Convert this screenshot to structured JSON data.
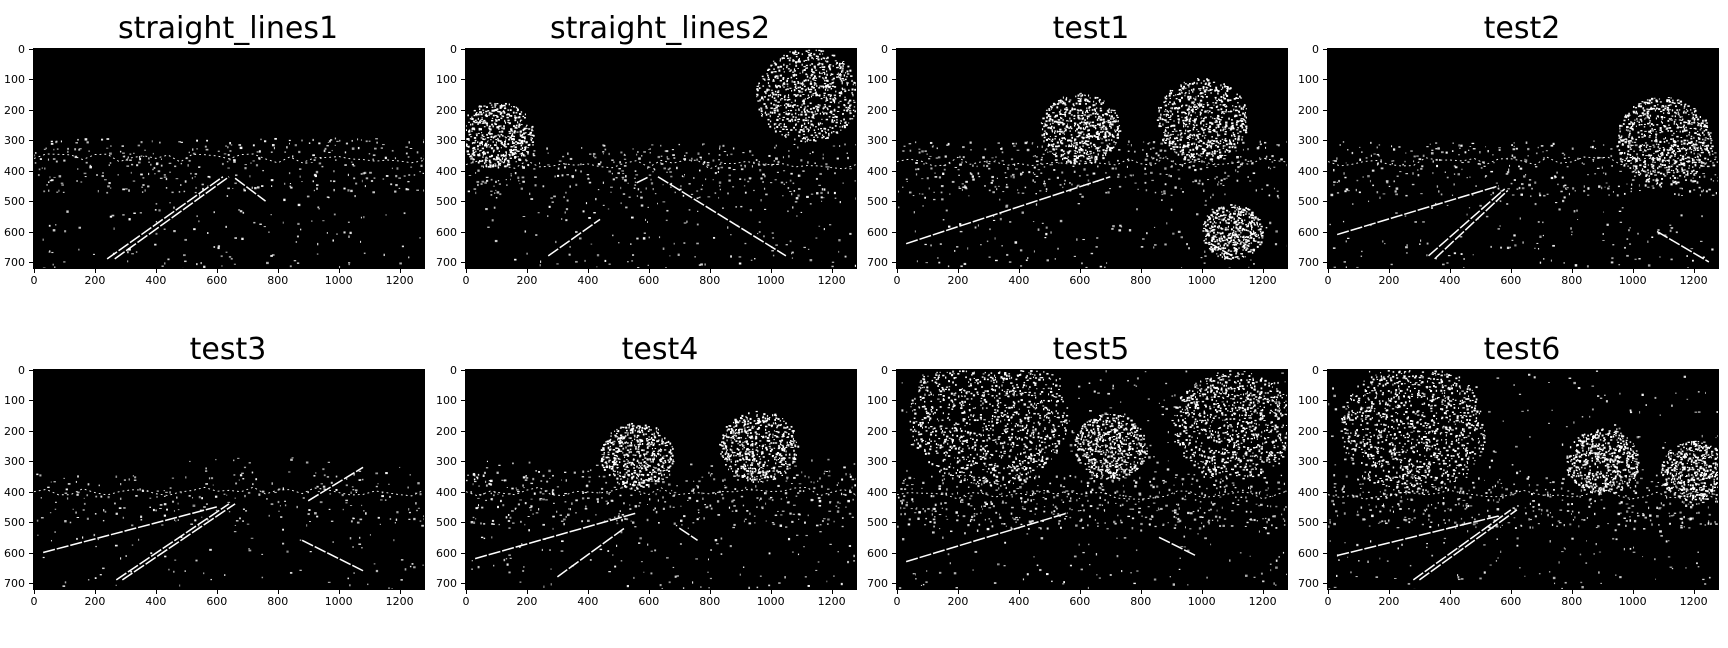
{
  "figure": {
    "background": "#ffffff",
    "image_background": "#000000",
    "edge_color": "#ffffff",
    "panels": [
      {
        "title": "straight_lines1",
        "scene": {
          "lanes": [
            {
              "x1": 240,
              "y1": 690,
              "x2": 620,
              "y2": 420
            },
            {
              "x1": 265,
              "y1": 690,
              "x2": 640,
              "y2": 420
            },
            {
              "x1": 660,
              "y1": 425,
              "x2": 760,
              "y2": 500
            }
          ],
          "horizon": 400,
          "trees": [],
          "noise_top": 290,
          "density": 0.5,
          "seed": 11
        }
      },
      {
        "title": "straight_lines2",
        "scene": {
          "lanes": [
            {
              "x1": 270,
              "y1": 680,
              "x2": 440,
              "y2": 560
            },
            {
              "x1": 630,
              "y1": 420,
              "x2": 1050,
              "y2": 680
            },
            {
              "x1": 560,
              "y1": 440,
              "x2": 600,
              "y2": 420
            }
          ],
          "horizon": 420,
          "trees": [
            {
              "cx": 1120,
              "cy": 150,
              "r": 170
            },
            {
              "cx": 100,
              "cy": 280,
              "r": 120
            }
          ],
          "noise_top": 330,
          "density": 0.55,
          "seed": 23
        }
      },
      {
        "title": "test1",
        "scene": {
          "lanes": [
            {
              "x1": 30,
              "y1": 640,
              "x2": 700,
              "y2": 420
            },
            {
              "x1": 1030,
              "y1": 640,
              "x2": 1100,
              "y2": 680
            }
          ],
          "horizon": 410,
          "trees": [
            {
              "cx": 600,
              "cy": 260,
              "r": 130
            },
            {
              "cx": 1000,
              "cy": 230,
              "r": 150
            },
            {
              "cx": 1100,
              "cy": 600,
              "r": 100
            }
          ],
          "noise_top": 300,
          "density": 0.6,
          "seed": 37
        }
      },
      {
        "title": "test2",
        "scene": {
          "lanes": [
            {
              "x1": 30,
              "y1": 610,
              "x2": 560,
              "y2": 450
            },
            {
              "x1": 330,
              "y1": 680,
              "x2": 580,
              "y2": 460
            },
            {
              "x1": 350,
              "y1": 690,
              "x2": 590,
              "y2": 465
            },
            {
              "x1": 1080,
              "y1": 600,
              "x2": 1250,
              "y2": 700
            }
          ],
          "horizon": 410,
          "trees": [
            {
              "cx": 1100,
              "cy": 300,
              "r": 160
            }
          ],
          "noise_top": 300,
          "density": 0.55,
          "seed": 41
        }
      },
      {
        "title": "test3",
        "scene": {
          "lanes": [
            {
              "x1": 270,
              "y1": 690,
              "x2": 640,
              "y2": 440
            },
            {
              "x1": 290,
              "y1": 690,
              "x2": 660,
              "y2": 440
            },
            {
              "x1": 30,
              "y1": 600,
              "x2": 600,
              "y2": 450
            },
            {
              "x1": 880,
              "y1": 560,
              "x2": 1080,
              "y2": 660
            },
            {
              "x1": 900,
              "y1": 430,
              "x2": 1080,
              "y2": 320
            }
          ],
          "horizon": 440,
          "trees": [],
          "noise_top": 280,
          "density": 0.35,
          "seed": 53
        }
      },
      {
        "title": "test4",
        "scene": {
          "lanes": [
            {
              "x1": 300,
              "y1": 680,
              "x2": 520,
              "y2": 520
            },
            {
              "x1": 30,
              "y1": 620,
              "x2": 560,
              "y2": 470
            },
            {
              "x1": 700,
              "y1": 520,
              "x2": 760,
              "y2": 560
            }
          ],
          "horizon": 440,
          "trees": [
            {
              "cx": 560,
              "cy": 280,
              "r": 120
            },
            {
              "cx": 960,
              "cy": 250,
              "r": 130
            }
          ],
          "noise_top": 290,
          "density": 0.6,
          "seed": 67
        }
      },
      {
        "title": "test5",
        "scene": {
          "lanes": [
            {
              "x1": 30,
              "y1": 630,
              "x2": 560,
              "y2": 470
            },
            {
              "x1": 860,
              "y1": 550,
              "x2": 980,
              "y2": 610
            }
          ],
          "horizon": 450,
          "trees": [
            {
              "cx": 300,
              "cy": 150,
              "r": 260
            },
            {
              "cx": 1100,
              "cy": 180,
              "r": 200
            },
            {
              "cx": 700,
              "cy": 250,
              "r": 120
            }
          ],
          "noise_top": 0,
          "density": 0.85,
          "seed": 79
        }
      },
      {
        "title": "test6",
        "scene": {
          "lanes": [
            {
              "x1": 280,
              "y1": 690,
              "x2": 600,
              "y2": 460
            },
            {
              "x1": 300,
              "y1": 690,
              "x2": 620,
              "y2": 460
            },
            {
              "x1": 30,
              "y1": 610,
              "x2": 560,
              "y2": 480
            }
          ],
          "horizon": 450,
          "trees": [
            {
              "cx": 280,
              "cy": 190,
              "r": 240
            },
            {
              "cx": 900,
              "cy": 300,
              "r": 120
            },
            {
              "cx": 1200,
              "cy": 330,
              "r": 110
            }
          ],
          "noise_top": 0,
          "density": 0.75,
          "seed": 97
        }
      }
    ],
    "axes": {
      "y_ticks": [
        "0",
        "100",
        "200",
        "300",
        "400",
        "500",
        "600",
        "700"
      ],
      "y_tick_values": [
        0,
        100,
        200,
        300,
        400,
        500,
        600,
        700
      ],
      "x_ticks": [
        "0",
        "200",
        "400",
        "600",
        "800",
        "1000",
        "1200"
      ],
      "x_tick_values": [
        0,
        200,
        400,
        600,
        800,
        1000,
        1200
      ],
      "x_range": [
        0,
        1280
      ],
      "y_range": [
        0,
        720
      ]
    }
  }
}
